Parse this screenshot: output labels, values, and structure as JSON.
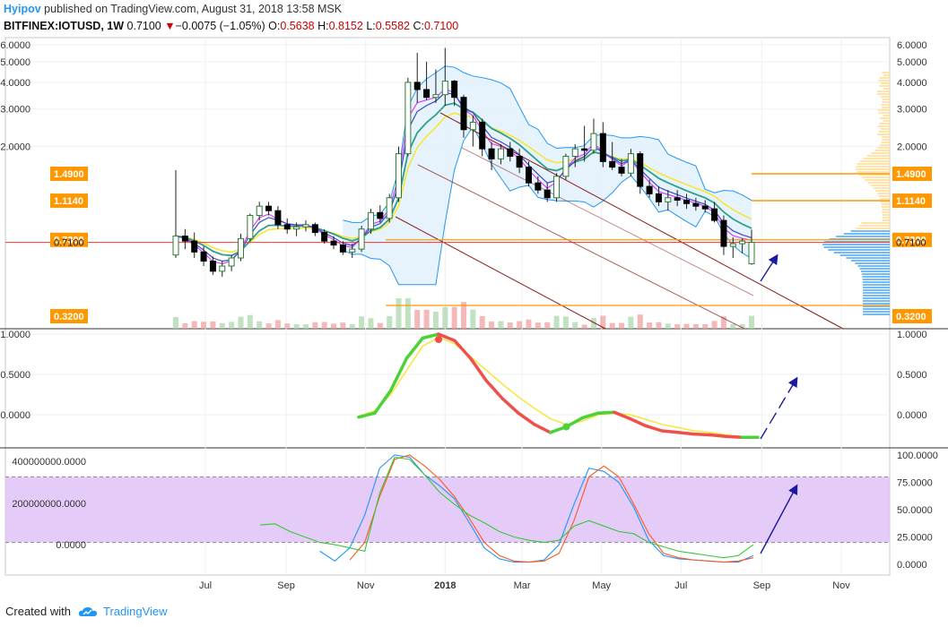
{
  "header": {
    "author": "Hyipov",
    "published_text": " published on TradingView.com, August 31, 2018 13:58 MSK",
    "symbol": "BITFINEX:IOTUSD, 1W",
    "last": "0.7100",
    "change": "−0.0075 (−1.05%)",
    "ohlc": {
      "o_label": "O:",
      "o": "0.5638",
      "h_label": "H:",
      "h": "0.8152",
      "l_label": "L:",
      "l": "0.5582",
      "c_label": "C:",
      "c": "0.7100"
    }
  },
  "footer": {
    "created_with": "Created with",
    "brand": "TradingView"
  },
  "colors": {
    "up_candle": "#ffffff",
    "down_candle": "#000000",
    "bb_fill": "#e1f0fb",
    "bb_line": "#2196f3",
    "ema_fast": "#e040fb",
    "ema_slow": "#2f9e8f",
    "yellow_line": "#f5e63a",
    "channel": "#8b1a1a",
    "hline_orange": "#ff9800",
    "hline_red": "#e53935",
    "stoch_band": "#e0c2f7",
    "arrow": "#1a1aa0"
  },
  "chart_data": [
    {
      "type": "candlestick",
      "pane": "price",
      "x_labels": [
        "Jul",
        "Sep",
        "Nov",
        "2018",
        "Mar",
        "May",
        "Jul",
        "Sep",
        "Nov"
      ],
      "x_dates": [
        "2017-07-01",
        "2017-09-01",
        "2017-11-01",
        "2018-01-01",
        "2018-03-01",
        "2018-05-01",
        "2018-07-01",
        "2018-09-01",
        "2018-11-01"
      ],
      "y_ticks": [
        "6.0000",
        "5.0000",
        "4.0000",
        "3.0000",
        "2.0000"
      ],
      "y_range": [
        0.32,
        6.0
      ],
      "scale": "log",
      "price_labels": [
        {
          "value": 1.49,
          "text": "1.4900",
          "color": "#ff9800"
        },
        {
          "value": 1.114,
          "text": "1.1140",
          "color": "#ff9800"
        },
        {
          "value": 0.73,
          "text": "0.7300",
          "color": "#ff9800"
        },
        {
          "value": 0.71,
          "text": "0.7100",
          "color": "#ffffff"
        },
        {
          "value": 0.32,
          "text": "0.3200",
          "color": "#ff9800"
        }
      ],
      "series": [
        {
          "name": "IOTUSD",
          "ohlc": [
            [
              0.62,
              1.55,
              0.6,
              0.76
            ],
            [
              0.76,
              0.82,
              0.66,
              0.72
            ],
            [
              0.72,
              0.79,
              0.6,
              0.64
            ],
            [
              0.64,
              0.68,
              0.55,
              0.58
            ],
            [
              0.58,
              0.61,
              0.5,
              0.52
            ],
            [
              0.52,
              0.58,
              0.49,
              0.55
            ],
            [
              0.55,
              0.62,
              0.52,
              0.6
            ],
            [
              0.6,
              0.78,
              0.58,
              0.74
            ],
            [
              0.74,
              0.97,
              0.72,
              0.95
            ],
            [
              0.95,
              1.1,
              0.9,
              1.05
            ],
            [
              1.05,
              1.1,
              0.95,
              1.0
            ],
            [
              1.0,
              1.05,
              0.82,
              0.86
            ],
            [
              0.86,
              0.92,
              0.78,
              0.82
            ],
            [
              0.82,
              0.88,
              0.76,
              0.84
            ],
            [
              0.84,
              0.9,
              0.8,
              0.86
            ],
            [
              0.86,
              0.88,
              0.76,
              0.79
            ],
            [
              0.79,
              0.82,
              0.7,
              0.72
            ],
            [
              0.72,
              0.76,
              0.66,
              0.69
            ],
            [
              0.69,
              0.72,
              0.62,
              0.64
            ],
            [
              0.64,
              0.7,
              0.6,
              0.66
            ],
            [
              0.66,
              0.85,
              0.64,
              0.82
            ],
            [
              0.82,
              1.02,
              0.78,
              0.98
            ],
            [
              0.98,
              1.06,
              0.88,
              0.92
            ],
            [
              0.92,
              1.2,
              0.88,
              1.15
            ],
            [
              1.15,
              2.0,
              1.1,
              1.85
            ],
            [
              1.85,
              4.2,
              1.8,
              4.0
            ],
            [
              4.0,
              5.5,
              3.2,
              3.7
            ],
            [
              3.7,
              5.0,
              3.3,
              3.4
            ],
            [
              3.4,
              4.6,
              3.2,
              3.5
            ],
            [
              3.5,
              5.8,
              3.1,
              4.05
            ],
            [
              4.05,
              4.1,
              3.1,
              3.4
            ],
            [
              3.4,
              3.5,
              2.2,
              2.4
            ],
            [
              2.4,
              2.8,
              2.0,
              2.6
            ],
            [
              2.6,
              2.7,
              1.8,
              1.95
            ],
            [
              1.95,
              2.1,
              1.55,
              1.75
            ],
            [
              1.75,
              2.05,
              1.65,
              1.95
            ],
            [
              1.95,
              2.1,
              1.7,
              1.8
            ],
            [
              1.8,
              1.95,
              1.5,
              1.6
            ],
            [
              1.6,
              1.7,
              1.3,
              1.35
            ],
            [
              1.35,
              1.45,
              1.2,
              1.25
            ],
            [
              1.25,
              1.35,
              1.1,
              1.15
            ],
            [
              1.15,
              1.5,
              1.1,
              1.45
            ],
            [
              1.45,
              1.85,
              1.4,
              1.8
            ],
            [
              1.8,
              2.05,
              1.6,
              1.95
            ],
            [
              1.95,
              2.5,
              1.7,
              1.92
            ],
            [
              1.92,
              2.7,
              1.85,
              2.3
            ],
            [
              2.3,
              2.6,
              1.6,
              1.7
            ],
            [
              1.7,
              2.1,
              1.55,
              1.6
            ],
            [
              1.6,
              1.75,
              1.45,
              1.5
            ],
            [
              1.5,
              1.95,
              1.45,
              1.85
            ],
            [
              1.85,
              1.9,
              1.2,
              1.3
            ],
            [
              1.3,
              1.4,
              1.15,
              1.2
            ],
            [
              1.2,
              1.3,
              1.05,
              1.1
            ],
            [
              1.1,
              1.25,
              1.0,
              1.15
            ],
            [
              1.15,
              1.25,
              1.05,
              1.12
            ],
            [
              1.12,
              1.2,
              1.02,
              1.08
            ],
            [
              1.08,
              1.15,
              1.0,
              1.05
            ],
            [
              1.05,
              1.12,
              0.98,
              1.02
            ],
            [
              1.02,
              1.1,
              0.88,
              0.9
            ],
            [
              0.9,
              0.95,
              0.62,
              0.68
            ],
            [
              0.68,
              0.75,
              0.6,
              0.7
            ],
            [
              0.7,
              0.74,
              0.63,
              0.72
            ],
            [
              0.5638,
              0.8152,
              0.5582,
              0.71
            ]
          ]
        }
      ]
    },
    {
      "type": "line",
      "pane": "oscillator",
      "y_ticks": [
        "1.0000",
        "0.5000",
        "0.0000"
      ],
      "y_range": [
        -0.3,
        1.05
      ],
      "series": [
        {
          "name": "signal",
          "color": "#f5e63a",
          "values": [
            -0.02,
            0.05,
            0.25,
            0.55,
            0.85,
            0.96,
            0.88,
            0.72,
            0.55,
            0.38,
            0.22,
            0.08,
            -0.05,
            -0.12,
            -0.08,
            0.0,
            0.02,
            0.0,
            -0.06,
            -0.12,
            -0.16,
            -0.2,
            -0.22,
            -0.25,
            -0.27,
            -0.28
          ]
        },
        {
          "name": "main",
          "values": [
            -0.03,
            0.02,
            0.3,
            0.7,
            0.95,
            1.0,
            0.92,
            0.7,
            0.42,
            0.2,
            0.02,
            -0.12,
            -0.22,
            -0.15,
            -0.04,
            0.02,
            0.03,
            -0.05,
            -0.14,
            -0.2,
            -0.22,
            -0.24,
            -0.25,
            -0.27,
            -0.28,
            -0.28
          ]
        }
      ]
    },
    {
      "type": "line",
      "pane": "stochastic",
      "y_ticks_left": [
        "400000000.0000",
        "200000000.0000",
        "0.0000"
      ],
      "y_ticks_right": [
        "100.0000",
        "75.0000",
        "50.0000",
        "25.0000",
        "0.0000"
      ],
      "band": [
        20,
        80
      ],
      "series": [
        {
          "name": "k",
          "color": "#2196f3",
          "values": [
            null,
            null,
            null,
            null,
            12,
            3,
            15,
            45,
            88,
            100,
            98,
            82,
            72,
            60,
            38,
            15,
            5,
            2,
            2,
            4,
            18,
            55,
            88,
            85,
            75,
            52,
            22,
            8,
            5,
            4,
            3,
            2,
            2,
            8
          ]
        },
        {
          "name": "d",
          "color": "#ff5722",
          "values": [
            null,
            null,
            null,
            null,
            null,
            null,
            4,
            20,
            62,
            96,
            100,
            90,
            78,
            62,
            42,
            20,
            8,
            3,
            2,
            3,
            10,
            40,
            80,
            90,
            80,
            55,
            28,
            10,
            6,
            4,
            3,
            2,
            3,
            6
          ]
        },
        {
          "name": "volume",
          "color": "#37c837",
          "values": [
            36,
            37,
            30,
            25,
            20,
            18,
            15,
            12,
            65,
            98,
            96,
            82,
            66,
            55,
            45,
            38,
            30,
            25,
            22,
            20,
            22,
            35,
            40,
            35,
            30,
            28,
            20,
            16,
            12,
            10,
            8,
            6,
            8,
            18
          ]
        }
      ]
    }
  ]
}
